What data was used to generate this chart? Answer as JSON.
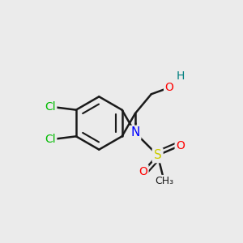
{
  "background_color": "#ebebeb",
  "figsize": [
    3.0,
    3.0
  ],
  "dpi": 100,
  "bond_color": "#1a1a1a",
  "atom_colors": {
    "N": "#0000ff",
    "O": "#ff0000",
    "S": "#cccc00",
    "Cl": "#00bb00",
    "C": "#1a1a1a",
    "H": "#008080"
  },
  "bond_lw": 1.8,
  "font_size": 10
}
